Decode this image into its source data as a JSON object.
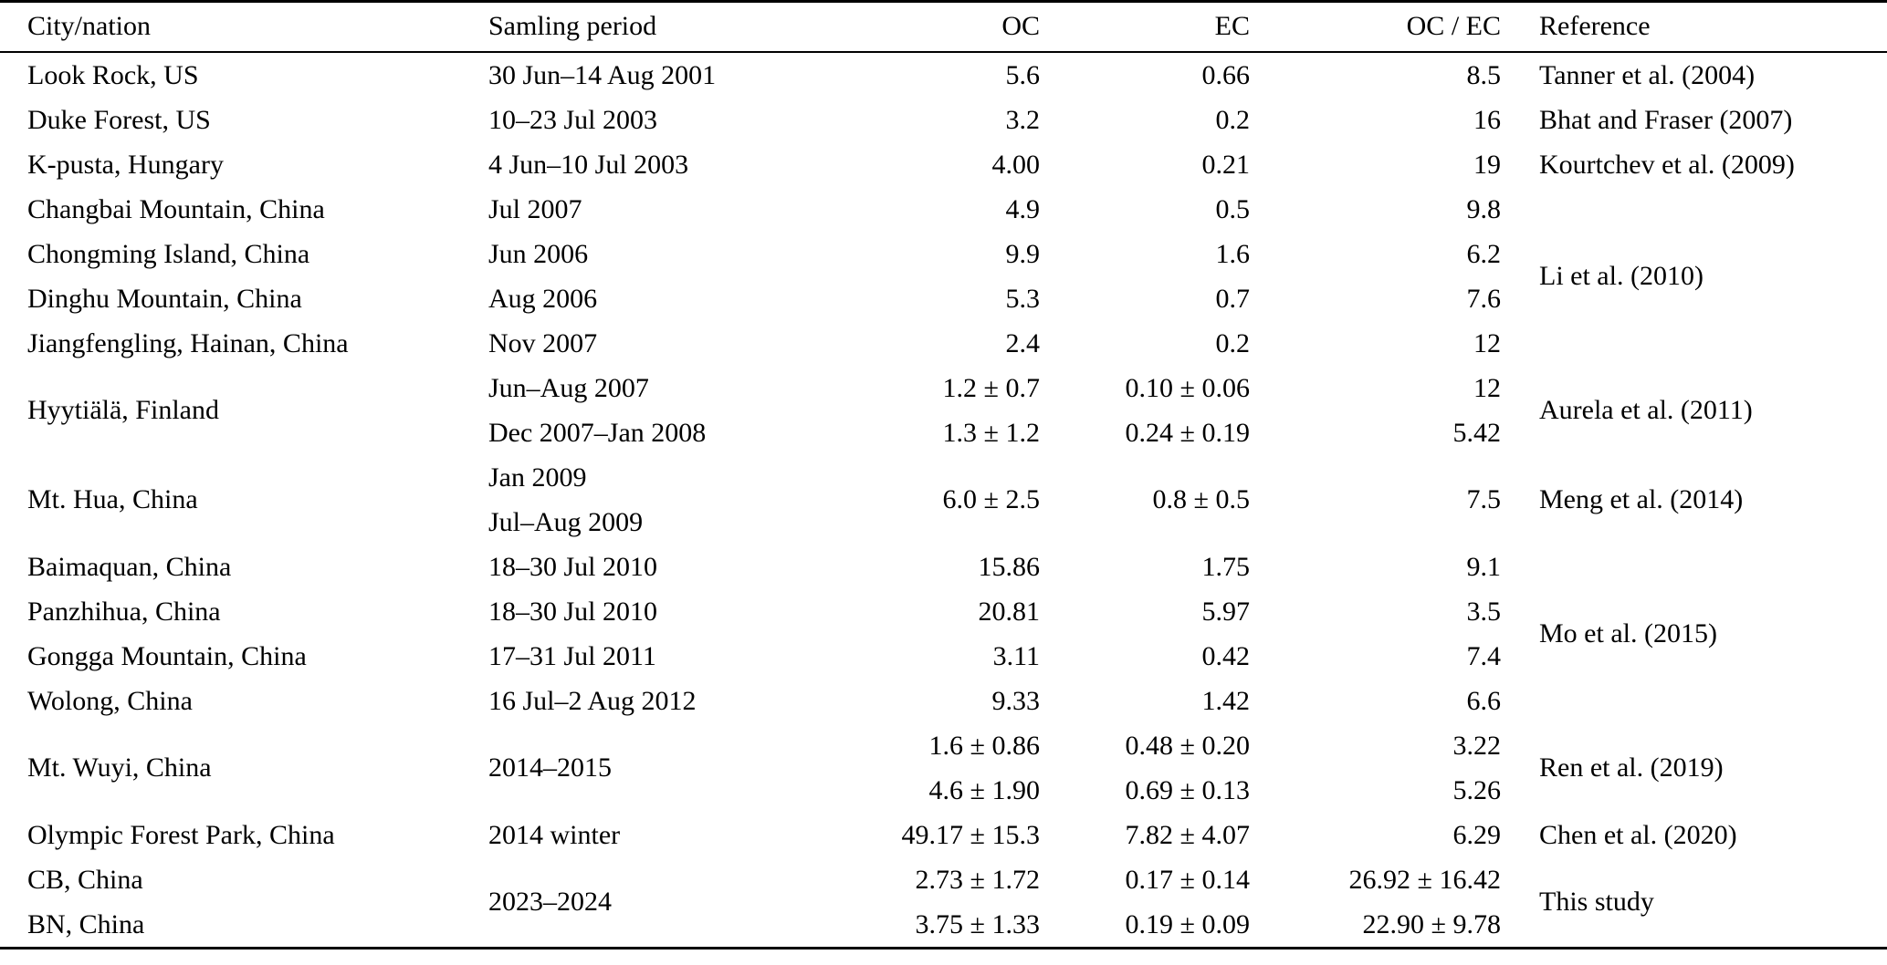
{
  "table": {
    "columns": [
      {
        "key": "city",
        "label": "City/nation",
        "align": "left"
      },
      {
        "key": "period",
        "label": "Samling period",
        "align": "left"
      },
      {
        "key": "oc",
        "label": "OC",
        "align": "right"
      },
      {
        "key": "ec",
        "label": "EC",
        "align": "right"
      },
      {
        "key": "ocec",
        "label": "OC / EC",
        "align": "right"
      },
      {
        "key": "ref",
        "label": "Reference",
        "align": "left"
      }
    ],
    "rows": [
      {
        "cells": [
          {
            "col": "city",
            "text": "Look Rock, US"
          },
          {
            "col": "period",
            "text": "30 Jun–14 Aug 2001"
          },
          {
            "col": "oc",
            "text": "5.6"
          },
          {
            "col": "ec",
            "text": "0.66"
          },
          {
            "col": "ocec",
            "text": "8.5"
          },
          {
            "col": "ref",
            "text": "Tanner et al. (2004)"
          }
        ]
      },
      {
        "cells": [
          {
            "col": "city",
            "text": "Duke Forest, US"
          },
          {
            "col": "period",
            "text": "10–23 Jul 2003"
          },
          {
            "col": "oc",
            "text": "3.2"
          },
          {
            "col": "ec",
            "text": "0.2"
          },
          {
            "col": "ocec",
            "text": "16"
          },
          {
            "col": "ref",
            "text": "Bhat and Fraser (2007)"
          }
        ]
      },
      {
        "cells": [
          {
            "col": "city",
            "text": "K-pusta, Hungary"
          },
          {
            "col": "period",
            "text": "4 Jun–10 Jul 2003"
          },
          {
            "col": "oc",
            "text": "4.00"
          },
          {
            "col": "ec",
            "text": "0.21"
          },
          {
            "col": "ocec",
            "text": "19"
          },
          {
            "col": "ref",
            "text": "Kourtchev et al. (2009)"
          }
        ]
      },
      {
        "cells": [
          {
            "col": "city",
            "text": "Changbai Mountain, China"
          },
          {
            "col": "period",
            "text": "Jul 2007"
          },
          {
            "col": "oc",
            "text": "4.9"
          },
          {
            "col": "ec",
            "text": "0.5"
          },
          {
            "col": "ocec",
            "text": "9.8"
          },
          {
            "col": "ref",
            "text": "Li et al. (2010)",
            "rowspan": 4
          }
        ]
      },
      {
        "cells": [
          {
            "col": "city",
            "text": "Chongming Island, China"
          },
          {
            "col": "period",
            "text": "Jun 2006"
          },
          {
            "col": "oc",
            "text": "9.9"
          },
          {
            "col": "ec",
            "text": "1.6"
          },
          {
            "col": "ocec",
            "text": "6.2"
          }
        ]
      },
      {
        "cells": [
          {
            "col": "city",
            "text": "Dinghu Mountain, China"
          },
          {
            "col": "period",
            "text": "Aug 2006"
          },
          {
            "col": "oc",
            "text": "5.3"
          },
          {
            "col": "ec",
            "text": "0.7"
          },
          {
            "col": "ocec",
            "text": "7.6"
          }
        ]
      },
      {
        "cells": [
          {
            "col": "city",
            "text": "Jiangfengling, Hainan, China"
          },
          {
            "col": "period",
            "text": "Nov 2007"
          },
          {
            "col": "oc",
            "text": "2.4"
          },
          {
            "col": "ec",
            "text": "0.2"
          },
          {
            "col": "ocec",
            "text": "12"
          }
        ]
      },
      {
        "cells": [
          {
            "col": "city",
            "text": "Hyytiälä, Finland",
            "rowspan": 2
          },
          {
            "col": "period",
            "text": "Jun–Aug 2007"
          },
          {
            "col": "oc",
            "text": "1.2 ± 0.7"
          },
          {
            "col": "ec",
            "text": "0.10 ± 0.06"
          },
          {
            "col": "ocec",
            "text": "12"
          },
          {
            "col": "ref",
            "text": "Aurela et al. (2011)",
            "rowspan": 2
          }
        ]
      },
      {
        "cells": [
          {
            "col": "period",
            "text": "Dec 2007–Jan 2008"
          },
          {
            "col": "oc",
            "text": "1.3 ± 1.2"
          },
          {
            "col": "ec",
            "text": "0.24 ± 0.19"
          },
          {
            "col": "ocec",
            "text": "5.42"
          }
        ]
      },
      {
        "cells": [
          {
            "col": "city",
            "text": "Mt. Hua, China"
          },
          {
            "col": "period",
            "text": "Jan 2009\nJul–Aug 2009"
          },
          {
            "col": "oc",
            "text": "6.0 ± 2.5"
          },
          {
            "col": "ec",
            "text": "0.8 ± 0.5"
          },
          {
            "col": "ocec",
            "text": "7.5"
          },
          {
            "col": "ref",
            "text": "Meng et al. (2014)"
          }
        ]
      },
      {
        "cells": [
          {
            "col": "city",
            "text": "Baimaquan, China"
          },
          {
            "col": "period",
            "text": "18–30 Jul 2010"
          },
          {
            "col": "oc",
            "text": "15.86"
          },
          {
            "col": "ec",
            "text": "1.75"
          },
          {
            "col": "ocec",
            "text": "9.1"
          },
          {
            "col": "ref",
            "text": "Mo et al. (2015)",
            "rowspan": 4
          }
        ]
      },
      {
        "cells": [
          {
            "col": "city",
            "text": "Panzhihua, China"
          },
          {
            "col": "period",
            "text": "18–30 Jul 2010"
          },
          {
            "col": "oc",
            "text": "20.81"
          },
          {
            "col": "ec",
            "text": "5.97"
          },
          {
            "col": "ocec",
            "text": "3.5"
          }
        ]
      },
      {
        "cells": [
          {
            "col": "city",
            "text": "Gongga Mountain, China"
          },
          {
            "col": "period",
            "text": "17–31 Jul 2011"
          },
          {
            "col": "oc",
            "text": "3.11"
          },
          {
            "col": "ec",
            "text": "0.42"
          },
          {
            "col": "ocec",
            "text": "7.4"
          }
        ]
      },
      {
        "cells": [
          {
            "col": "city",
            "text": "Wolong, China"
          },
          {
            "col": "period",
            "text": "16 Jul–2 Aug 2012"
          },
          {
            "col": "oc",
            "text": "9.33"
          },
          {
            "col": "ec",
            "text": "1.42"
          },
          {
            "col": "ocec",
            "text": "6.6"
          }
        ]
      },
      {
        "cells": [
          {
            "col": "city",
            "text": "Mt. Wuyi, China",
            "rowspan": 2
          },
          {
            "col": "period",
            "text": "2014–2015",
            "rowspan": 2
          },
          {
            "col": "oc",
            "text": "1.6 ± 0.86"
          },
          {
            "col": "ec",
            "text": "0.48 ± 0.20"
          },
          {
            "col": "ocec",
            "text": "3.22"
          },
          {
            "col": "ref",
            "text": "Ren et al. (2019)",
            "rowspan": 2
          }
        ]
      },
      {
        "cells": [
          {
            "col": "oc",
            "text": "4.6 ± 1.90"
          },
          {
            "col": "ec",
            "text": "0.69 ± 0.13"
          },
          {
            "col": "ocec",
            "text": "5.26"
          }
        ]
      },
      {
        "cells": [
          {
            "col": "city",
            "text": "Olympic Forest Park, China"
          },
          {
            "col": "period",
            "text": "2014 winter"
          },
          {
            "col": "oc",
            "text": "49.17 ± 15.3"
          },
          {
            "col": "ec",
            "text": "7.82 ± 4.07"
          },
          {
            "col": "ocec",
            "text": "6.29"
          },
          {
            "col": "ref",
            "text": "Chen et al. (2020)"
          }
        ]
      },
      {
        "cells": [
          {
            "col": "city",
            "text": "CB, China"
          },
          {
            "col": "period",
            "text": "2023–2024",
            "rowspan": 2
          },
          {
            "col": "oc",
            "text": "2.73 ± 1.72"
          },
          {
            "col": "ec",
            "text": "0.17 ± 0.14"
          },
          {
            "col": "ocec",
            "text": "26.92 ± 16.42"
          },
          {
            "col": "ref",
            "text": "This study",
            "rowspan": 2
          }
        ]
      },
      {
        "cells": [
          {
            "col": "city",
            "text": "BN, China"
          },
          {
            "col": "oc",
            "text": "3.75 ± 1.33"
          },
          {
            "col": "ec",
            "text": "0.19 ± 0.09"
          },
          {
            "col": "ocec",
            "text": "22.90 ± 9.78"
          }
        ]
      }
    ]
  }
}
